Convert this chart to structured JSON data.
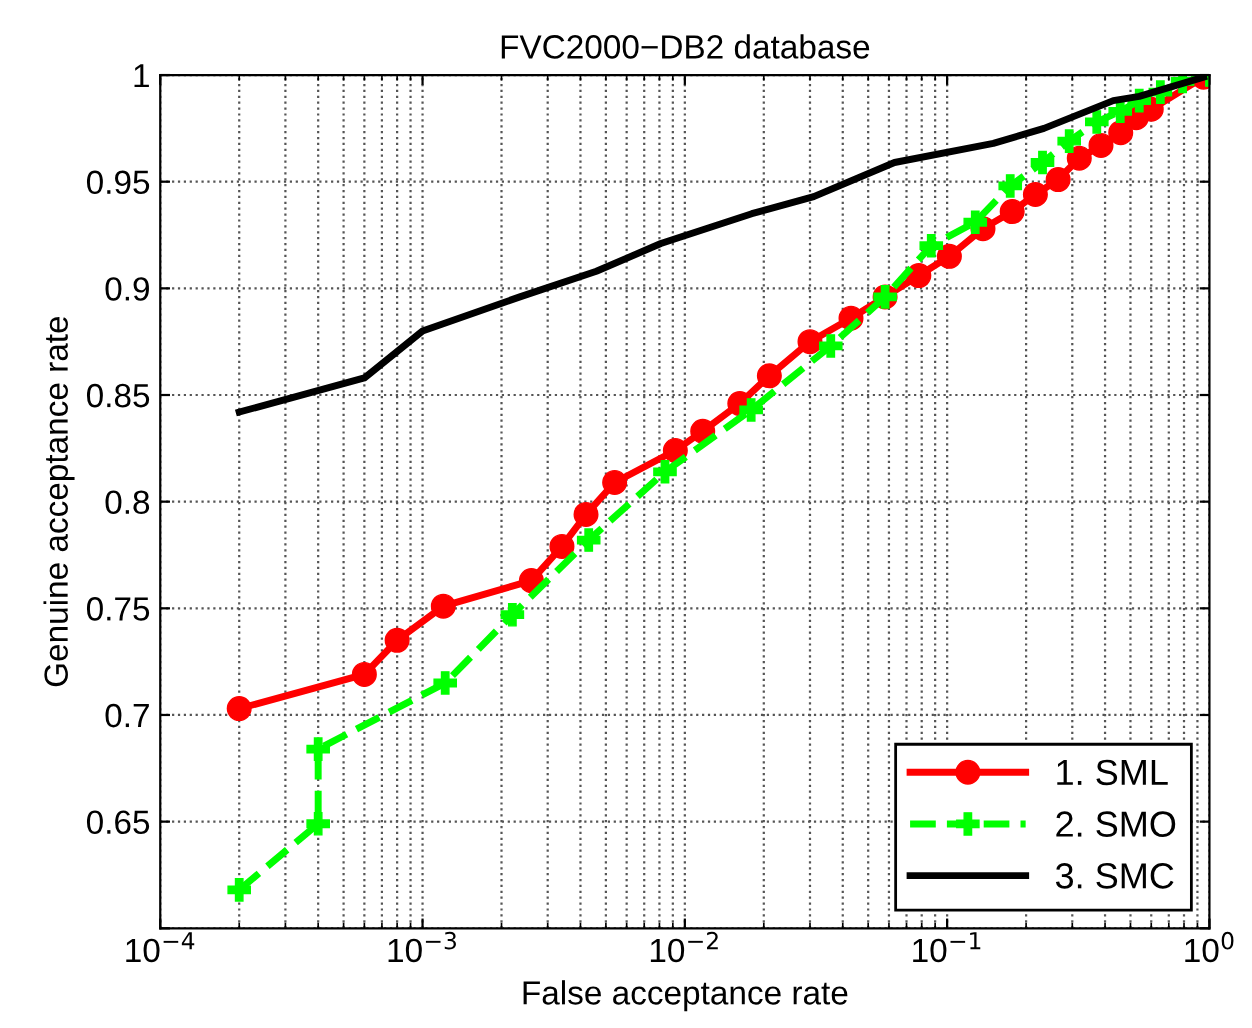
{
  "chart_data": {
    "type": "line",
    "title": "FVC2000−DB2 database",
    "xlabel": "False acceptance rate",
    "ylabel": "Genuine acceptance rate",
    "log": "x",
    "xlim": [
      0.0001,
      1
    ],
    "xticks": [
      {
        "value": 0.0001,
        "label": "10$^{−4}$"
      },
      {
        "value": 0.001,
        "label": "10$^{−3}$"
      },
      {
        "value": 0.01,
        "label": "10$^{−2}$"
      },
      {
        "value": 0.1,
        "label": "10$^{−1}$"
      },
      {
        "value": 1,
        "label": "10$^{0}$"
      }
    ],
    "ylim": [
      0.6,
      1
    ],
    "yticks": [
      {
        "value": 0.6,
        "label": null
      },
      0.65,
      0.7,
      0.75,
      0.8,
      0.85,
      0.9,
      0.95,
      1
    ],
    "grid": true,
    "legend": "bottom right",
    "series": [
      {
        "name": "1. SML",
        "color": "#ff0000",
        "marker": "circle",
        "line_style": "solid",
        "x": [
          0.0002,
          0.0006,
          0.0008,
          0.0012,
          0.0026,
          0.0034,
          0.0042,
          0.0054,
          0.0092,
          0.0117,
          0.0162,
          0.021,
          0.03,
          0.043,
          0.058,
          0.078,
          0.102,
          0.137,
          0.177,
          0.217,
          0.265,
          0.319,
          0.386,
          0.459,
          0.526,
          0.6,
          0.95
        ],
        "values": [
          0.703,
          0.719,
          0.735,
          0.751,
          0.763,
          0.779,
          0.794,
          0.809,
          0.824,
          0.833,
          0.846,
          0.859,
          0.875,
          0.886,
          0.896,
          0.906,
          0.915,
          0.928,
          0.936,
          0.944,
          0.951,
          0.961,
          0.967,
          0.973,
          0.98,
          0.984,
          0.999
        ]
      },
      {
        "name": "2. SMO",
        "color": "#00ff00",
        "marker": "cross",
        "line_style": "dashed",
        "x": [
          0.0002,
          0.0004,
          0.0004,
          0.00122,
          0.0022,
          0.0043,
          0.0084,
          0.0179,
          0.036,
          0.058,
          0.087,
          0.128,
          0.174,
          0.231,
          0.292,
          0.372,
          0.457,
          0.54,
          0.65,
          0.79,
          1.0
        ],
        "values": [
          0.618,
          0.649,
          0.684,
          0.715,
          0.747,
          0.782,
          0.814,
          0.843,
          0.873,
          0.896,
          0.92,
          0.931,
          0.948,
          0.959,
          0.969,
          0.978,
          0.983,
          0.988,
          0.992,
          0.997,
          1.0
        ]
      },
      {
        "name": "3. SMC",
        "color": "#000000",
        "marker": "none",
        "line_style": "solid",
        "x": [
          0.0002,
          0.0006,
          0.001,
          0.00235,
          0.0046,
          0.0081,
          0.018,
          0.031,
          0.063,
          0.15,
          0.234,
          0.43,
          0.54,
          0.95
        ],
        "values": [
          0.842,
          0.858,
          0.88,
          0.896,
          0.908,
          0.921,
          0.935,
          0.943,
          0.959,
          0.968,
          0.975,
          0.988,
          0.99,
          0.999
        ]
      }
    ]
  }
}
